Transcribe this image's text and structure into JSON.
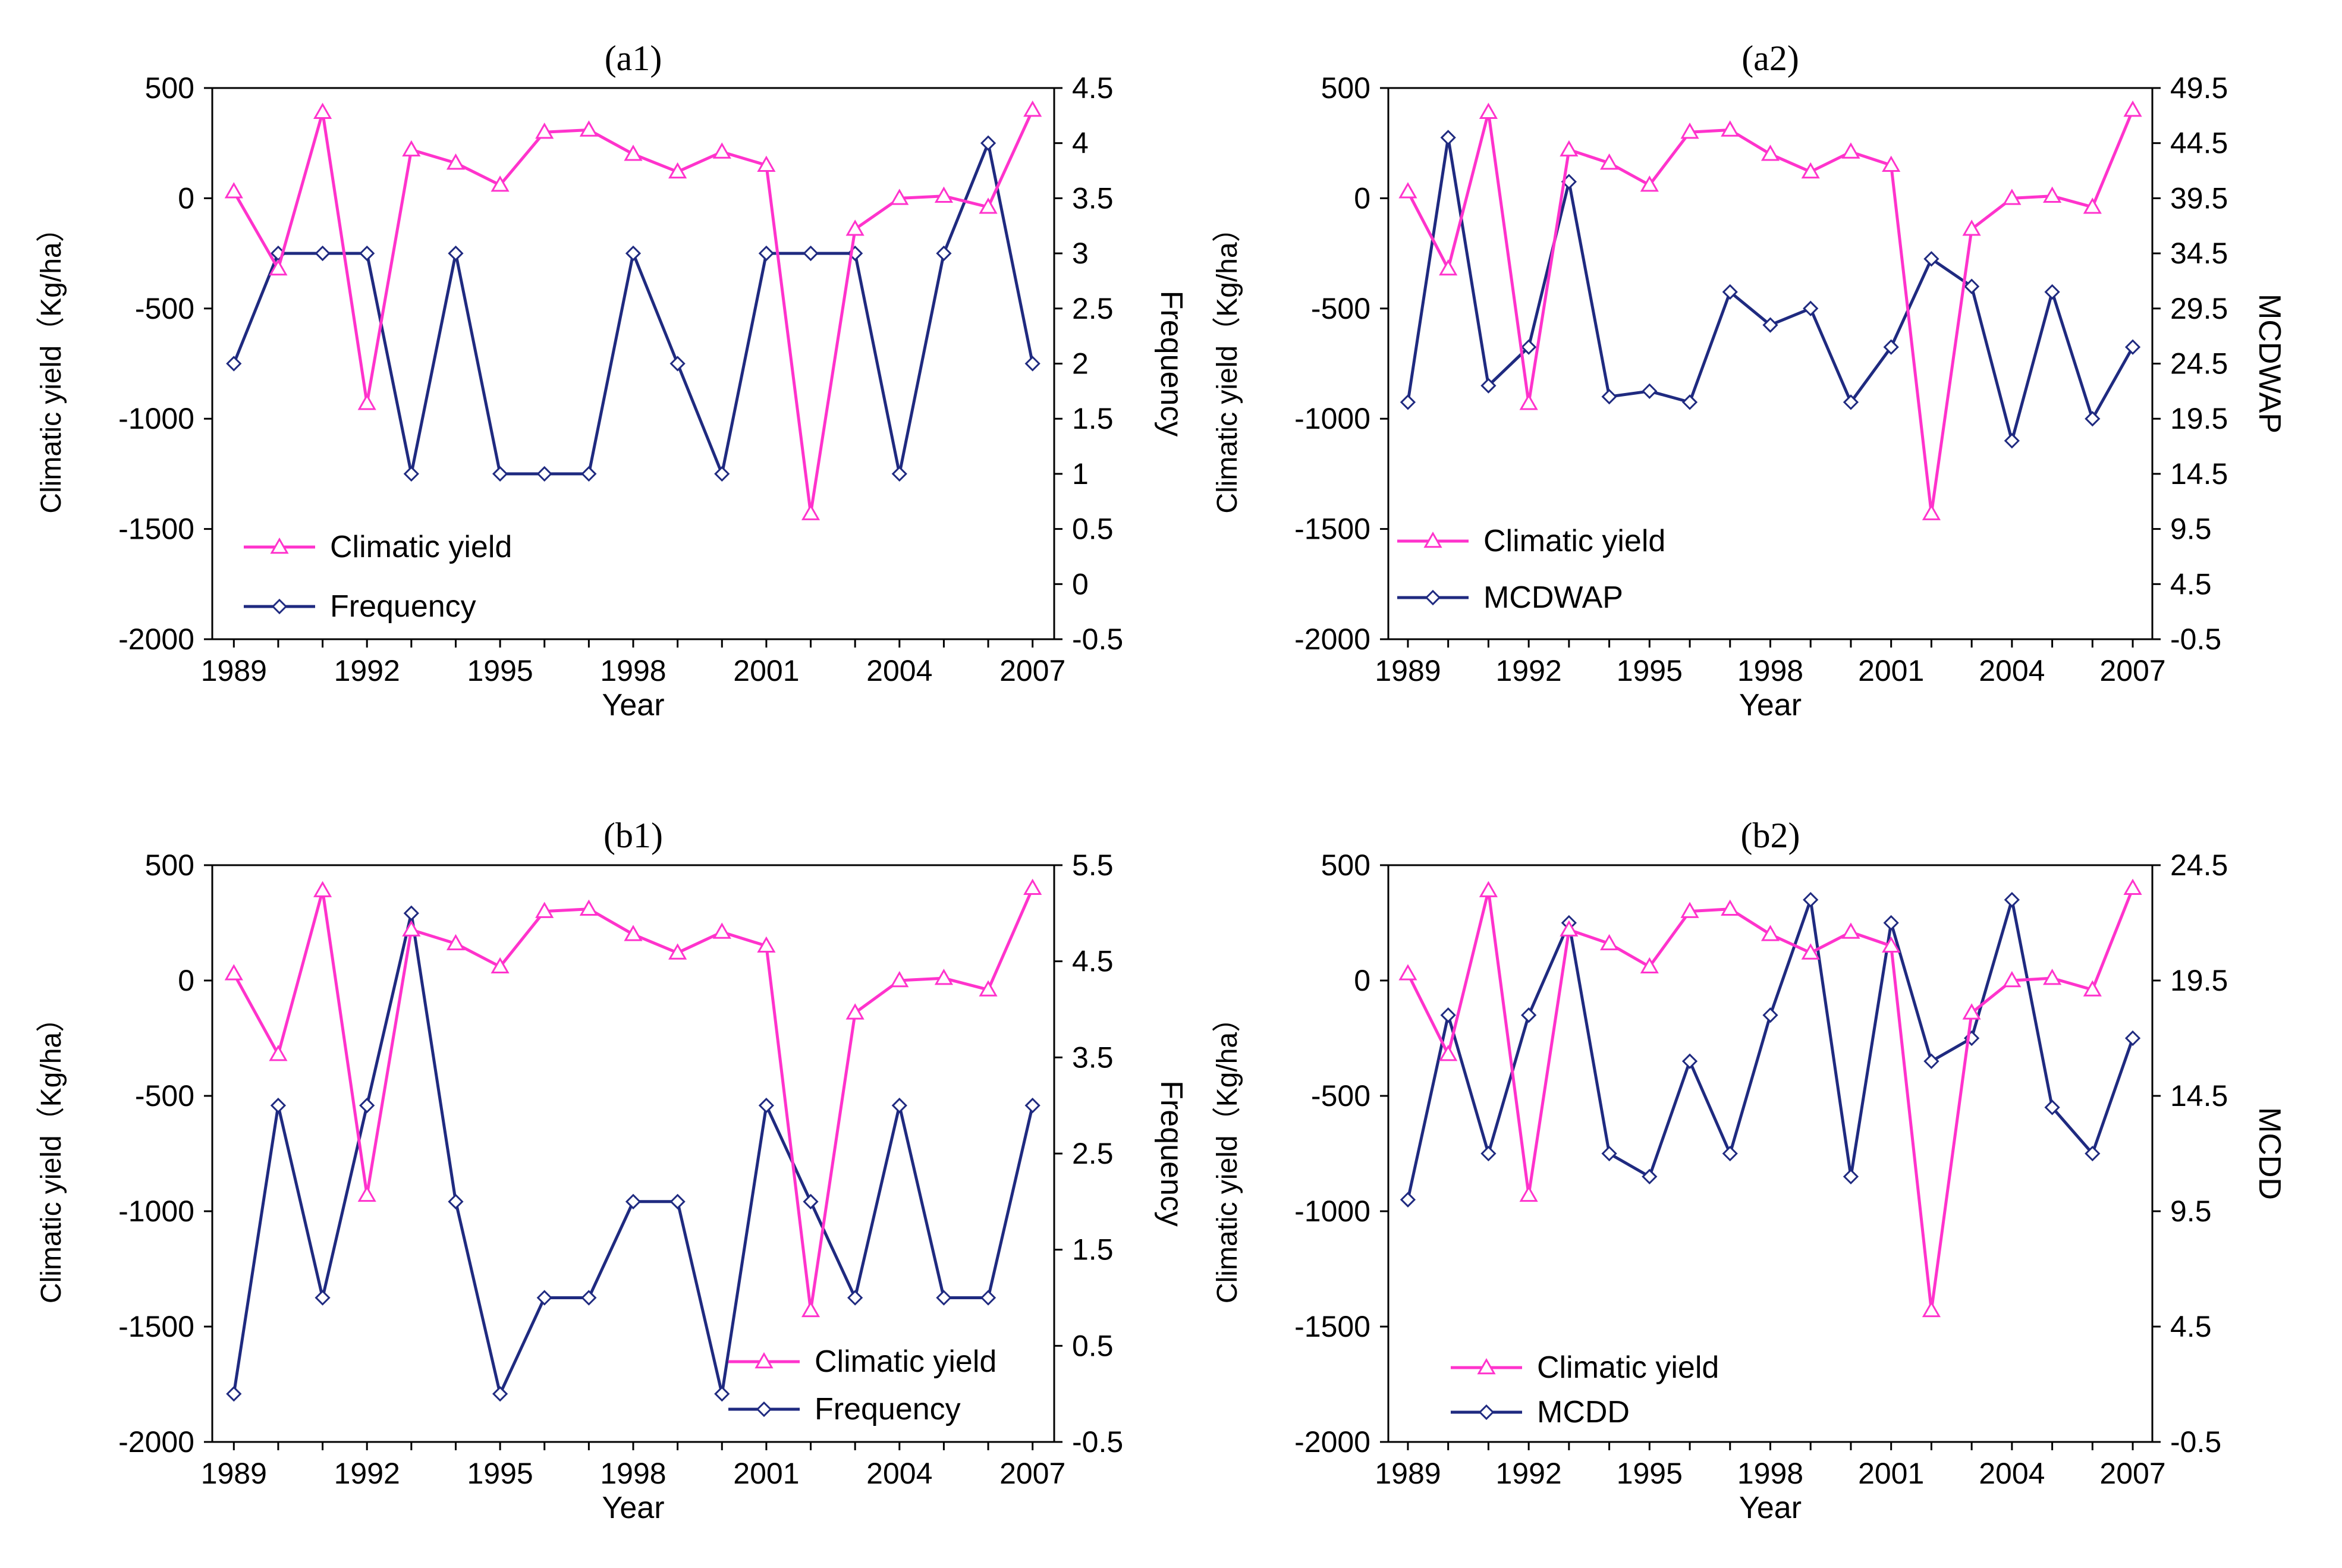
{
  "chart_data": [
    {
      "type": "line",
      "title": "(a1)",
      "xlabel": "Year",
      "ylabel_left": "Climatic yield（Kg/ha）",
      "ylabel_right": "Frequency",
      "x": [
        1989,
        1990,
        1991,
        1992,
        1993,
        1994,
        1995,
        1996,
        1997,
        1998,
        1999,
        2000,
        2001,
        2002,
        2003,
        2004,
        2005,
        2006,
        2007
      ],
      "x_ticks": [
        "1989",
        "1992",
        "1995",
        "1998",
        "2001",
        "2004",
        "2007"
      ],
      "ylim_left": [
        -2000,
        500
      ],
      "yticks_left": [
        "500",
        "0",
        "-500",
        "-1000",
        "-1500",
        "-2000"
      ],
      "ylim_right": [
        -0.5,
        4.5
      ],
      "yticks_right": [
        "4.5",
        "4",
        "3.5",
        "3",
        "2.5",
        "2",
        "1.5",
        "1",
        "0.5",
        "0",
        "-0.5"
      ],
      "series": [
        {
          "name": "Climatic yield",
          "axis": "left",
          "color": "#ff33cc",
          "marker": "triangle",
          "values": [
            30,
            -320,
            390,
            -930,
            220,
            160,
            60,
            300,
            310,
            200,
            120,
            210,
            150,
            -1430,
            -140,
            0,
            10,
            -40,
            400
          ]
        },
        {
          "name": "Frequency",
          "axis": "right",
          "color": "#1f2a80",
          "marker": "diamond",
          "values": [
            2,
            3,
            3,
            3,
            1,
            3,
            1,
            1,
            1,
            3,
            2,
            1,
            3,
            3,
            3,
            1,
            3,
            4,
            2
          ]
        }
      ],
      "legend": [
        "Climatic yield",
        "Frequency"
      ]
    },
    {
      "type": "line",
      "title": "(a2)",
      "xlabel": "Year",
      "ylabel_left": "Climatic yield（Kg/ha）",
      "ylabel_right": "MCDWAP",
      "x": [
        1989,
        1990,
        1991,
        1992,
        1993,
        1994,
        1995,
        1996,
        1997,
        1998,
        1999,
        2000,
        2001,
        2002,
        2003,
        2004,
        2005,
        2006,
        2007
      ],
      "x_ticks": [
        "1989",
        "1992",
        "1995",
        "1998",
        "2001",
        "2004",
        "2007"
      ],
      "ylim_left": [
        -2000,
        500
      ],
      "yticks_left": [
        "500",
        "0",
        "-500",
        "-1000",
        "-1500",
        "-2000"
      ],
      "ylim_right": [
        -0.5,
        49.5
      ],
      "yticks_right": [
        "49.5",
        "44.5",
        "39.5",
        "34.5",
        "29.5",
        "24.5",
        "19.5",
        "14.5",
        "9.5",
        "4.5",
        "-0.5"
      ],
      "series": [
        {
          "name": "Climatic yield",
          "axis": "left",
          "color": "#ff33cc",
          "marker": "triangle",
          "values": [
            30,
            -320,
            390,
            -930,
            220,
            160,
            60,
            300,
            310,
            200,
            120,
            210,
            150,
            -1430,
            -140,
            0,
            10,
            -40,
            400
          ]
        },
        {
          "name": "MCDWAP",
          "axis": "right",
          "color": "#1f2a80",
          "marker": "diamond",
          "values": [
            21,
            45,
            22.5,
            26,
            41,
            21.5,
            22,
            21,
            31,
            28,
            29.5,
            21,
            26,
            34,
            31.5,
            17.5,
            31,
            19.5,
            26
          ]
        }
      ],
      "legend": [
        "Climatic yield",
        "MCDWAP"
      ]
    },
    {
      "type": "line",
      "title": "(b1)",
      "xlabel": "Year",
      "ylabel_left": "Climatic yield（Kg/ha）",
      "ylabel_right": "Frequency",
      "x": [
        1989,
        1990,
        1991,
        1992,
        1993,
        1994,
        1995,
        1996,
        1997,
        1998,
        1999,
        2000,
        2001,
        2002,
        2003,
        2004,
        2005,
        2006,
        2007
      ],
      "x_ticks": [
        "1989",
        "1992",
        "1995",
        "1998",
        "2001",
        "2004",
        "2007"
      ],
      "ylim_left": [
        -2000,
        500
      ],
      "yticks_left": [
        "500",
        "0",
        "-500",
        "-1000",
        "-1500",
        "-2000"
      ],
      "ylim_right": [
        -0.5,
        5.5
      ],
      "yticks_right": [
        "5.5",
        "4.5",
        "3.5",
        "2.5",
        "1.5",
        "0.5",
        "-0.5"
      ],
      "series": [
        {
          "name": "Climatic yield",
          "axis": "left",
          "color": "#ff33cc",
          "marker": "triangle",
          "values": [
            30,
            -320,
            390,
            -930,
            220,
            160,
            60,
            300,
            310,
            200,
            120,
            210,
            150,
            -1430,
            -140,
            0,
            10,
            -40,
            400
          ]
        },
        {
          "name": "Frequency",
          "axis": "right",
          "color": "#1f2a80",
          "marker": "diamond",
          "values": [
            0,
            3,
            1,
            3,
            5,
            2,
            0,
            1,
            1,
            2,
            2,
            0,
            3,
            2,
            1,
            3,
            1,
            1,
            3
          ]
        }
      ],
      "legend": [
        "Climatic yield",
        "Frequency"
      ]
    },
    {
      "type": "line",
      "title": "(b2)",
      "xlabel": "Year",
      "ylabel_left": "Climatic yield（Kg/ha）",
      "ylabel_right": "MCDD",
      "x": [
        1989,
        1990,
        1991,
        1992,
        1993,
        1994,
        1995,
        1996,
        1997,
        1998,
        1999,
        2000,
        2001,
        2002,
        2003,
        2004,
        2005,
        2006,
        2007
      ],
      "x_ticks": [
        "1989",
        "1992",
        "1995",
        "1998",
        "2001",
        "2004",
        "2007"
      ],
      "ylim_left": [
        -2000,
        500
      ],
      "yticks_left": [
        "500",
        "0",
        "-500",
        "-1000",
        "-1500",
        "-2000"
      ],
      "ylim_right": [
        -0.5,
        24.5
      ],
      "yticks_right": [
        "24.5",
        "19.5",
        "14.5",
        "9.5",
        "4.5",
        "-0.5"
      ],
      "series": [
        {
          "name": "Climatic yield",
          "axis": "left",
          "color": "#ff33cc",
          "marker": "triangle",
          "values": [
            30,
            -320,
            390,
            -930,
            220,
            160,
            60,
            300,
            310,
            200,
            120,
            210,
            150,
            -1430,
            -140,
            0,
            10,
            -40,
            400
          ]
        },
        {
          "name": "MCDD",
          "axis": "right",
          "color": "#1f2a80",
          "marker": "diamond",
          "values": [
            10,
            18,
            12,
            18,
            22,
            12,
            11,
            16,
            12,
            18,
            23,
            11,
            22,
            16,
            17,
            23,
            14,
            12,
            17
          ]
        }
      ],
      "legend": [
        "Climatic yield",
        "MCDD"
      ]
    }
  ]
}
